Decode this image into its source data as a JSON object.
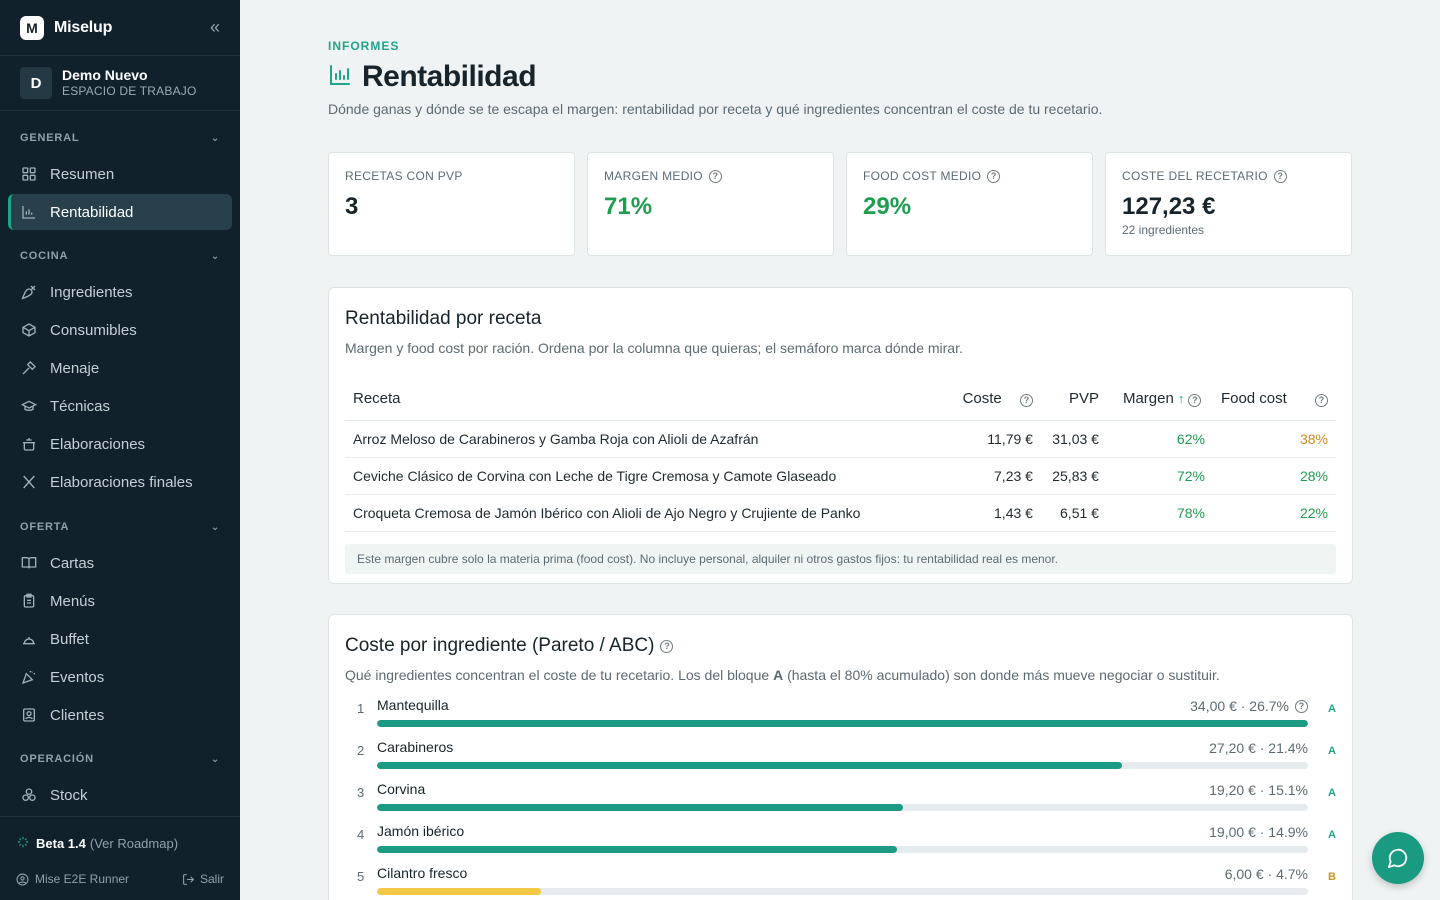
{
  "app": {
    "name": "Miselup",
    "logo_letter": "M"
  },
  "workspace": {
    "avatar": "D",
    "name": "Demo Nuevo",
    "label": "ESPACIO DE TRABAJO"
  },
  "sidebar": {
    "sections": [
      {
        "title": "GENERAL",
        "items": [
          {
            "label": "Resumen",
            "icon": "grid-icon"
          },
          {
            "label": "Rentabilidad",
            "icon": "bar-chart-icon",
            "active": true
          }
        ]
      },
      {
        "title": "COCINA",
        "items": [
          {
            "label": "Ingredientes",
            "icon": "carrot-icon"
          },
          {
            "label": "Consumibles",
            "icon": "box-icon"
          },
          {
            "label": "Menaje",
            "icon": "utensil-icon"
          },
          {
            "label": "Técnicas",
            "icon": "graduation-cap-icon"
          },
          {
            "label": "Elaboraciones",
            "icon": "pot-icon"
          },
          {
            "label": "Elaboraciones finales",
            "icon": "fork-knife-icon"
          }
        ]
      },
      {
        "title": "OFERTA",
        "items": [
          {
            "label": "Cartas",
            "icon": "book-open-icon"
          },
          {
            "label": "Menús",
            "icon": "clipboard-icon"
          },
          {
            "label": "Buffet",
            "icon": "cloche-icon"
          },
          {
            "label": "Eventos",
            "icon": "party-icon"
          },
          {
            "label": "Clientes",
            "icon": "contact-icon"
          }
        ]
      },
      {
        "title": "OPERACIÓN",
        "items": [
          {
            "label": "Stock",
            "icon": "boxes-icon"
          }
        ]
      }
    ],
    "footer": {
      "version": "Beta 1.4",
      "roadmap": "(Ver Roadmap)",
      "user": "Mise E2E Runner",
      "logout": "Salir"
    }
  },
  "header": {
    "overline": "INFORMES",
    "title": "Rentabilidad",
    "subtitle": "Dónde ganas y dónde se te escapa el margen: rentabilidad por receta y qué ingredientes concentran el coste de tu recetario."
  },
  "kpis": [
    {
      "label": "RECETAS CON PVP",
      "value": "3",
      "help": false,
      "green": false
    },
    {
      "label": "MARGEN MEDIO",
      "value": "71%",
      "help": true,
      "green": true
    },
    {
      "label": "FOOD COST MEDIO",
      "value": "29%",
      "help": true,
      "green": true
    },
    {
      "label": "COSTE DEL RECETARIO",
      "value": "127,23 €",
      "sub": "22 ingredientes",
      "help": true,
      "green": false
    }
  ],
  "recipes_card": {
    "title": "Rentabilidad por receta",
    "subtitle": "Margen y food cost por ración. Ordena por la columna que quieras; el semáforo marca dónde mirar.",
    "columns": {
      "recipe": "Receta",
      "cost": "Coste",
      "pvp": "PVP",
      "margin": "Margen",
      "food_cost": "Food cost"
    },
    "rows": [
      {
        "recipe": "Arroz Meloso de Carabineros y Gamba Roja con Alioli de Azafrán",
        "cost": "11,79 €",
        "pvp": "31,03 €",
        "margin": "62%",
        "food_cost": "38%",
        "fc_status": "warning"
      },
      {
        "recipe": "Ceviche Clásico de Corvina con Leche de Tigre Cremosa y Camote Glaseado",
        "cost": "7,23 €",
        "pvp": "25,83 €",
        "margin": "72%",
        "food_cost": "28%",
        "fc_status": "ok"
      },
      {
        "recipe": "Croqueta Cremosa de Jamón Ibérico con Alioli de Ajo Negro y Crujiente de Panko",
        "cost": "1,43 €",
        "pvp": "6,51 €",
        "margin": "78%",
        "food_cost": "22%",
        "fc_status": "ok"
      }
    ],
    "note": "Este margen cubre solo la materia prima (food cost). No incluye personal, alquiler ni otros gastos fijos: tu rentabilidad real es menor."
  },
  "pareto_card": {
    "title": "Coste por ingrediente (Pareto / ABC)",
    "subtitle_pre": "Qué ingredientes concentran el coste de tu recetario. Los del bloque ",
    "subtitle_bold": "A",
    "subtitle_post": " (hasta el 80% acumulado) son donde más mueve negociar o sustituir.",
    "items": [
      {
        "rank": "1",
        "name": "Mantequilla",
        "amount": "34,00 € · 26.7%",
        "share_of_max": 1.0,
        "class": "A",
        "help": true
      },
      {
        "rank": "2",
        "name": "Carabineros",
        "amount": "27,20 € · 21.4%",
        "share_of_max": 0.8,
        "class": "A"
      },
      {
        "rank": "3",
        "name": "Corvina",
        "amount": "19,20 € · 15.1%",
        "share_of_max": 0.565,
        "class": "A"
      },
      {
        "rank": "4",
        "name": "Jamón ibérico",
        "amount": "19,00 € · 14.9%",
        "share_of_max": 0.559,
        "class": "A"
      },
      {
        "rank": "5",
        "name": "Cilantro fresco",
        "amount": "6,00 € · 4.7%",
        "share_of_max": 0.176,
        "class": "B"
      }
    ]
  },
  "colors": {
    "sidebar_bg": "#10212b",
    "accent": "#1fa58a",
    "positive": "#1f9d4f",
    "warning": "#d68a1a",
    "class_b": "#f3c845"
  }
}
